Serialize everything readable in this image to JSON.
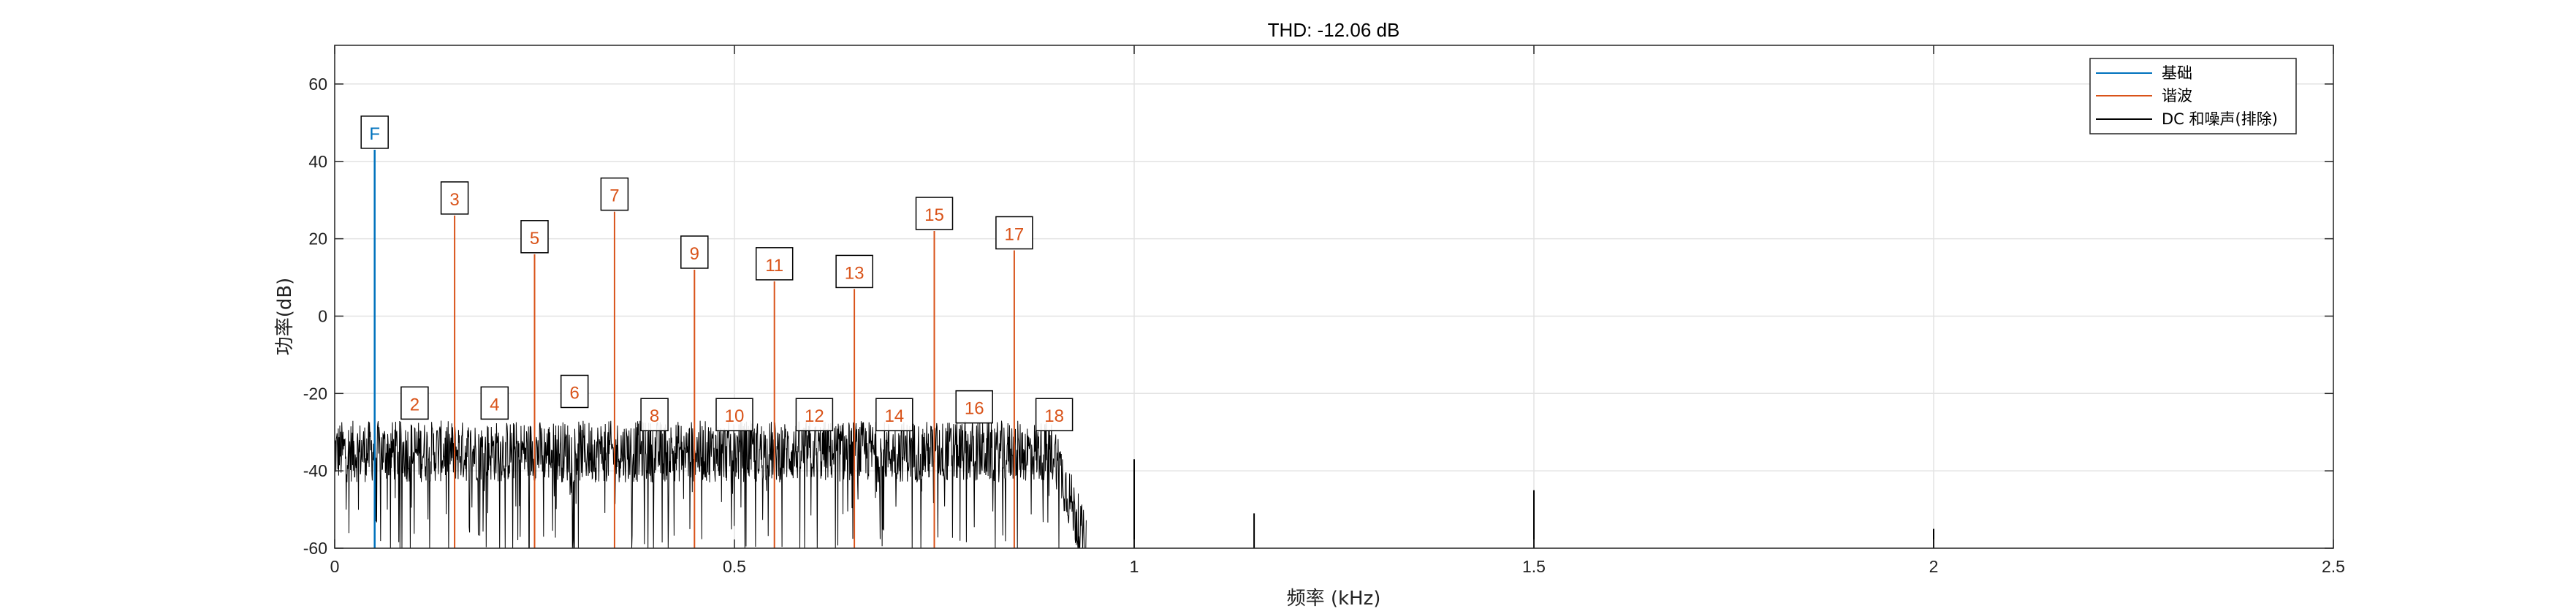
{
  "colors": {
    "fundamental": "#0072BD",
    "harmonic": "#D95319",
    "noise": "#000000",
    "grid": "#e3e3e3",
    "axis": "#262626"
  },
  "chart_data": {
    "type": "line",
    "title": "THD: -12.06 dB",
    "xlabel": "频率 (kHz)",
    "ylabel": "功率(dB)",
    "xlim": [
      0,
      2.5
    ],
    "ylim": [
      -60,
      70
    ],
    "xticks": [
      0,
      0.5,
      1,
      1.5,
      2,
      2.5
    ],
    "xtick_labels": [
      "0",
      "0.5",
      "1",
      "1.5",
      "2",
      "2.5"
    ],
    "yticks": [
      -60,
      -40,
      -20,
      0,
      20,
      40,
      60
    ],
    "ytick_labels": [
      "-60",
      "-40",
      "-20",
      "0",
      "20",
      "40",
      "60"
    ],
    "grid": true,
    "legend_position": "top-right",
    "legend": [
      {
        "label": "基础",
        "series": "fundamental"
      },
      {
        "label": "谐波",
        "series": "harmonic"
      },
      {
        "label": "DC 和噪声(排除)",
        "series": "noise"
      }
    ],
    "fundamental": {
      "label": "F",
      "x": 0.05,
      "y": 43
    },
    "harmonics": [
      {
        "label": "3",
        "x": 0.15,
        "y": 26
      },
      {
        "label": "5",
        "x": 0.25,
        "y": 16
      },
      {
        "label": "7",
        "x": 0.35,
        "y": 27
      },
      {
        "label": "9",
        "x": 0.45,
        "y": 12
      },
      {
        "label": "11",
        "x": 0.55,
        "y": 9
      },
      {
        "label": "13",
        "x": 0.65,
        "y": 7
      },
      {
        "label": "15",
        "x": 0.75,
        "y": 22
      },
      {
        "label": "17",
        "x": 0.85,
        "y": 17
      }
    ],
    "low_harmonic_labels": [
      {
        "label": "2",
        "x": 0.1,
        "y": -27
      },
      {
        "label": "4",
        "x": 0.2,
        "y": -27
      },
      {
        "label": "6",
        "x": 0.3,
        "y": -24
      },
      {
        "label": "8",
        "x": 0.4,
        "y": -30
      },
      {
        "label": "10",
        "x": 0.5,
        "y": -30
      },
      {
        "label": "12",
        "x": 0.6,
        "y": -30
      },
      {
        "label": "14",
        "x": 0.7,
        "y": -30
      },
      {
        "label": "16",
        "x": 0.8,
        "y": -28
      },
      {
        "label": "18",
        "x": 0.9,
        "y": -30
      }
    ],
    "noise_band": {
      "x_start": 0.0,
      "x_end": 0.94,
      "level_mean": -35,
      "level_spread": 10,
      "deep_dips_to": -60
    },
    "isolated_spikes": [
      {
        "x": 1.0,
        "y": -37
      },
      {
        "x": 1.15,
        "y": -51
      },
      {
        "x": 1.5,
        "y": -45
      },
      {
        "x": 2.0,
        "y": -55
      }
    ]
  }
}
